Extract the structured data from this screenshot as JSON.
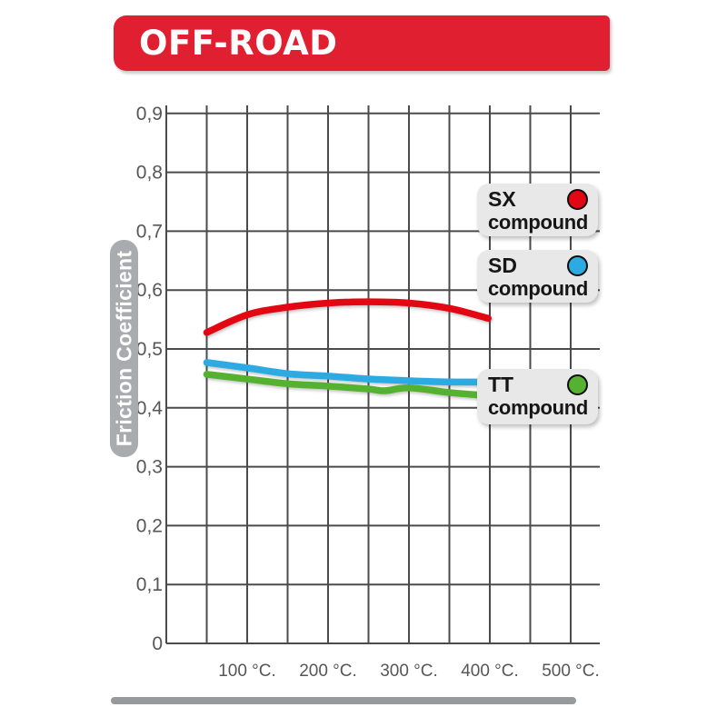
{
  "banner": {
    "title": "OFF-ROAD"
  },
  "colors": {
    "banner_red": "#e01f30",
    "grid_line": "#4b4b4d",
    "axis_text": "#56565a",
    "legend_bg": "#e8e8e9",
    "pill_bg": "#a9abae",
    "footer_bar": "#97999c",
    "sx_red": "#e30613",
    "sd_blue": "#2caae2",
    "tt_green": "#55b230"
  },
  "legend": {
    "items": [
      {
        "code": "SX",
        "label": "compound",
        "color": "#e30613"
      },
      {
        "code": "SD",
        "label": "compound",
        "color": "#2caae2"
      },
      {
        "code": "TT",
        "label": "compound",
        "color": "#55b230"
      }
    ]
  },
  "chart_data": {
    "type": "line",
    "title": "OFF-ROAD",
    "xlabel": "",
    "ylabel": "Friction Coefficient",
    "xlim": [
      0,
      550
    ],
    "ylim": [
      0,
      0.9
    ],
    "grid": true,
    "x_gridline_step": 50,
    "y_gridline_step": 0.1,
    "legend_position": "right-inside",
    "y_ticks": [
      {
        "value": 0.9,
        "label": "0,9"
      },
      {
        "value": 0.8,
        "label": "0,8"
      },
      {
        "value": 0.7,
        "label": "0,7"
      },
      {
        "value": 0.6,
        "label": "0,6"
      },
      {
        "value": 0.5,
        "label": "0,5"
      },
      {
        "value": 0.4,
        "label": "0,4"
      },
      {
        "value": 0.3,
        "label": "0,3"
      },
      {
        "value": 0.2,
        "label": "0,2"
      },
      {
        "value": 0.1,
        "label": "0,1"
      },
      {
        "value": 0.0,
        "label": "0"
      }
    ],
    "x_ticks": [
      {
        "value": 100,
        "label": "100 °C."
      },
      {
        "value": 200,
        "label": "200 °C."
      },
      {
        "value": 300,
        "label": "300 °C."
      },
      {
        "value": 400,
        "label": "400 °C."
      },
      {
        "value": 500,
        "label": "500 °C."
      }
    ],
    "series": [
      {
        "name": "SX compound",
        "color": "#e30613",
        "points": [
          [
            50,
            0.528
          ],
          [
            100,
            0.558
          ],
          [
            150,
            0.571
          ],
          [
            200,
            0.578
          ],
          [
            250,
            0.58
          ],
          [
            300,
            0.578
          ],
          [
            350,
            0.569
          ],
          [
            398,
            0.552
          ]
        ]
      },
      {
        "name": "SD compound",
        "color": "#2caae2",
        "points": [
          [
            50,
            0.477
          ],
          [
            100,
            0.468
          ],
          [
            150,
            0.458
          ],
          [
            200,
            0.454
          ],
          [
            250,
            0.449
          ],
          [
            300,
            0.446
          ],
          [
            350,
            0.444
          ],
          [
            395,
            0.444
          ]
        ]
      },
      {
        "name": "TT compound",
        "color": "#55b230",
        "points": [
          [
            50,
            0.457
          ],
          [
            100,
            0.449
          ],
          [
            150,
            0.441
          ],
          [
            200,
            0.437
          ],
          [
            250,
            0.432
          ],
          [
            270,
            0.429
          ],
          [
            300,
            0.434
          ],
          [
            350,
            0.426
          ],
          [
            385,
            0.422
          ]
        ]
      }
    ]
  }
}
